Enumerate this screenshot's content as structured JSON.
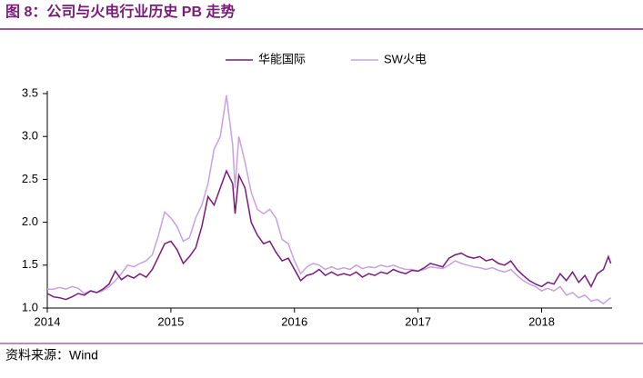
{
  "chart_data": {
    "type": "line",
    "title": "图 8：公司与火电行业历史 PB 走势",
    "source": "资料来源：Wind",
    "x": [
      2014.0,
      2014.05,
      2014.1,
      2014.15,
      2014.2,
      2014.25,
      2014.3,
      2014.35,
      2014.4,
      2014.45,
      2014.5,
      2014.55,
      2014.6,
      2014.65,
      2014.7,
      2014.75,
      2014.8,
      2014.85,
      2014.9,
      2014.95,
      2015.0,
      2015.05,
      2015.1,
      2015.15,
      2015.2,
      2015.25,
      2015.3,
      2015.35,
      2015.4,
      2015.45,
      2015.5,
      2015.52,
      2015.55,
      2015.6,
      2015.65,
      2015.7,
      2015.75,
      2015.8,
      2015.85,
      2015.9,
      2015.95,
      2016.0,
      2016.05,
      2016.1,
      2016.15,
      2016.2,
      2016.25,
      2016.3,
      2016.35,
      2016.4,
      2016.45,
      2016.5,
      2016.55,
      2016.6,
      2016.65,
      2016.7,
      2016.75,
      2016.8,
      2016.85,
      2016.9,
      2016.95,
      2017.0,
      2017.05,
      2017.1,
      2017.15,
      2017.2,
      2017.25,
      2017.3,
      2017.35,
      2017.4,
      2017.45,
      2017.5,
      2017.55,
      2017.6,
      2017.65,
      2017.7,
      2017.75,
      2017.8,
      2017.85,
      2017.9,
      2017.95,
      2018.0,
      2018.05,
      2018.1,
      2018.15,
      2018.2,
      2018.25,
      2018.3,
      2018.35,
      2018.4,
      2018.45,
      2018.5,
      2018.54,
      2018.56
    ],
    "series": [
      {
        "name": "华能国际",
        "color": "#7b1a7b",
        "values": [
          1.17,
          1.13,
          1.12,
          1.1,
          1.13,
          1.17,
          1.15,
          1.2,
          1.18,
          1.22,
          1.28,
          1.43,
          1.33,
          1.38,
          1.35,
          1.4,
          1.36,
          1.45,
          1.6,
          1.75,
          1.78,
          1.68,
          1.52,
          1.6,
          1.7,
          1.95,
          2.3,
          2.2,
          2.4,
          2.6,
          2.45,
          2.1,
          2.55,
          2.4,
          2.0,
          1.85,
          1.75,
          1.78,
          1.65,
          1.55,
          1.58,
          1.45,
          1.32,
          1.38,
          1.4,
          1.45,
          1.38,
          1.42,
          1.38,
          1.4,
          1.38,
          1.42,
          1.36,
          1.4,
          1.38,
          1.42,
          1.4,
          1.45,
          1.42,
          1.4,
          1.44,
          1.43,
          1.47,
          1.52,
          1.5,
          1.48,
          1.58,
          1.62,
          1.64,
          1.6,
          1.58,
          1.6,
          1.55,
          1.57,
          1.52,
          1.5,
          1.55,
          1.45,
          1.38,
          1.32,
          1.28,
          1.25,
          1.3,
          1.28,
          1.4,
          1.32,
          1.42,
          1.3,
          1.38,
          1.25,
          1.4,
          1.45,
          1.6,
          1.52
        ]
      },
      {
        "name": "SW火电",
        "color": "#c9a0e6",
        "values": [
          1.22,
          1.22,
          1.24,
          1.22,
          1.25,
          1.23,
          1.17,
          1.2,
          1.18,
          1.2,
          1.25,
          1.32,
          1.4,
          1.5,
          1.48,
          1.52,
          1.55,
          1.62,
          1.85,
          2.12,
          2.05,
          1.95,
          1.78,
          1.82,
          2.05,
          2.2,
          2.45,
          2.85,
          3.0,
          3.48,
          2.9,
          2.4,
          3.0,
          2.7,
          2.35,
          2.15,
          2.1,
          2.15,
          2.05,
          1.8,
          1.75,
          1.55,
          1.4,
          1.48,
          1.52,
          1.5,
          1.45,
          1.48,
          1.45,
          1.47,
          1.45,
          1.5,
          1.46,
          1.48,
          1.47,
          1.5,
          1.48,
          1.5,
          1.47,
          1.45,
          1.45,
          1.43,
          1.45,
          1.48,
          1.47,
          1.46,
          1.5,
          1.55,
          1.52,
          1.5,
          1.48,
          1.47,
          1.45,
          1.47,
          1.44,
          1.42,
          1.45,
          1.38,
          1.32,
          1.28,
          1.25,
          1.2,
          1.23,
          1.2,
          1.25,
          1.15,
          1.18,
          1.12,
          1.15,
          1.08,
          1.1,
          1.05,
          1.1,
          1.12
        ]
      }
    ],
    "xlim": [
      2014,
      2018.57
    ],
    "xticks": [
      2014,
      2015,
      2016,
      2017,
      2018
    ],
    "ylim": [
      1,
      3.5
    ],
    "yticks": [
      {
        "value": 1,
        "label": "1.0"
      },
      1.5,
      {
        "value": 2,
        "label": "2.0"
      },
      2.5,
      {
        "value": 3,
        "label": "3.0"
      },
      3.5
    ],
    "legend": "top"
  }
}
